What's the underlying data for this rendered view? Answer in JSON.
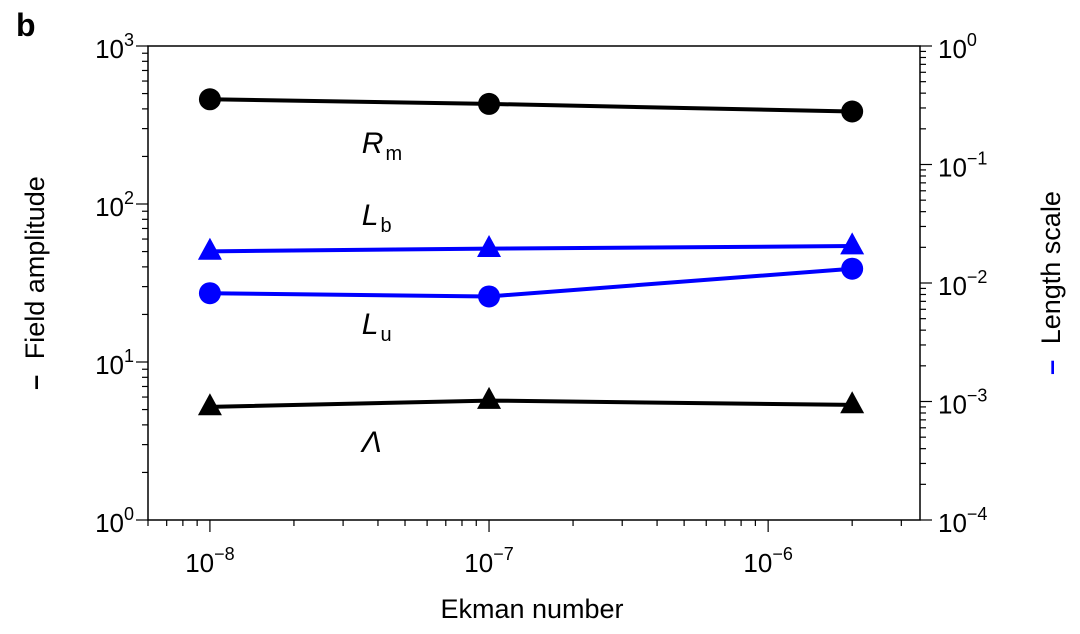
{
  "panel_label": "b",
  "chart_data": {
    "type": "line",
    "xlabel": "Ekman number",
    "ylabel_left": "Field amplitude",
    "ylabel_right": "Length scale",
    "x_scale": "log",
    "y_scale": "log",
    "xlim": [
      6e-09,
      3.5e-06
    ],
    "ylim_left": [
      1,
      1000
    ],
    "ylim_right": [
      0.0001,
      1
    ],
    "grid": false,
    "x_ticks": [
      {
        "value": 1e-08,
        "base": "10",
        "exp": "−8"
      },
      {
        "value": 1e-07,
        "base": "10",
        "exp": "−7"
      },
      {
        "value": 1e-06,
        "base": "10",
        "exp": "−6"
      }
    ],
    "y_left_ticks": [
      {
        "value": 1,
        "base": "10",
        "exp": "0"
      },
      {
        "value": 10,
        "base": "10",
        "exp": "1"
      },
      {
        "value": 100,
        "base": "10",
        "exp": "2"
      },
      {
        "value": 1000,
        "base": "10",
        "exp": "3"
      }
    ],
    "y_right_ticks": [
      {
        "value": 0.0001,
        "base": "10",
        "exp": "−4"
      },
      {
        "value": 0.001,
        "base": "10",
        "exp": "−3"
      },
      {
        "value": 0.01,
        "base": "10",
        "exp": "−2"
      },
      {
        "value": 0.1,
        "base": "10",
        "exp": "−1"
      },
      {
        "value": 1,
        "base": "10",
        "exp": "0"
      }
    ],
    "series": [
      {
        "name": "R",
        "sub": "m",
        "axis": "left",
        "color": "#000000",
        "marker": "circle",
        "x": [
          1e-08,
          1e-07,
          2e-06
        ],
        "y": [
          460,
          430,
          385
        ],
        "label_at": [
          3.5e-08,
          210
        ]
      },
      {
        "name": "L",
        "sub": "b",
        "axis": "right",
        "color": "#0000ff",
        "marker": "triangle",
        "x": [
          1e-08,
          1e-07,
          2e-06
        ],
        "y": [
          0.0185,
          0.0195,
          0.0205
        ],
        "label_at": [
          3.5e-08,
          0.031
        ]
      },
      {
        "name": "L",
        "sub": "u",
        "axis": "right",
        "color": "#0000ff",
        "marker": "circle",
        "x": [
          1e-08,
          1e-07,
          2e-06
        ],
        "y": [
          0.0082,
          0.0077,
          0.0132
        ],
        "label_at": [
          3.5e-08,
          0.0037
        ]
      },
      {
        "name": "Λ",
        "sub": "",
        "axis": "left",
        "color": "#000000",
        "marker": "triangle",
        "x": [
          1e-08,
          1e-07,
          2e-06
        ],
        "y": [
          5.2,
          5.7,
          5.35
        ],
        "label_at": [
          3.5e-08,
          2.7
        ]
      }
    ],
    "ylabel_left_marker_color": "#000000",
    "ylabel_right_marker_color": "#0000ff"
  }
}
